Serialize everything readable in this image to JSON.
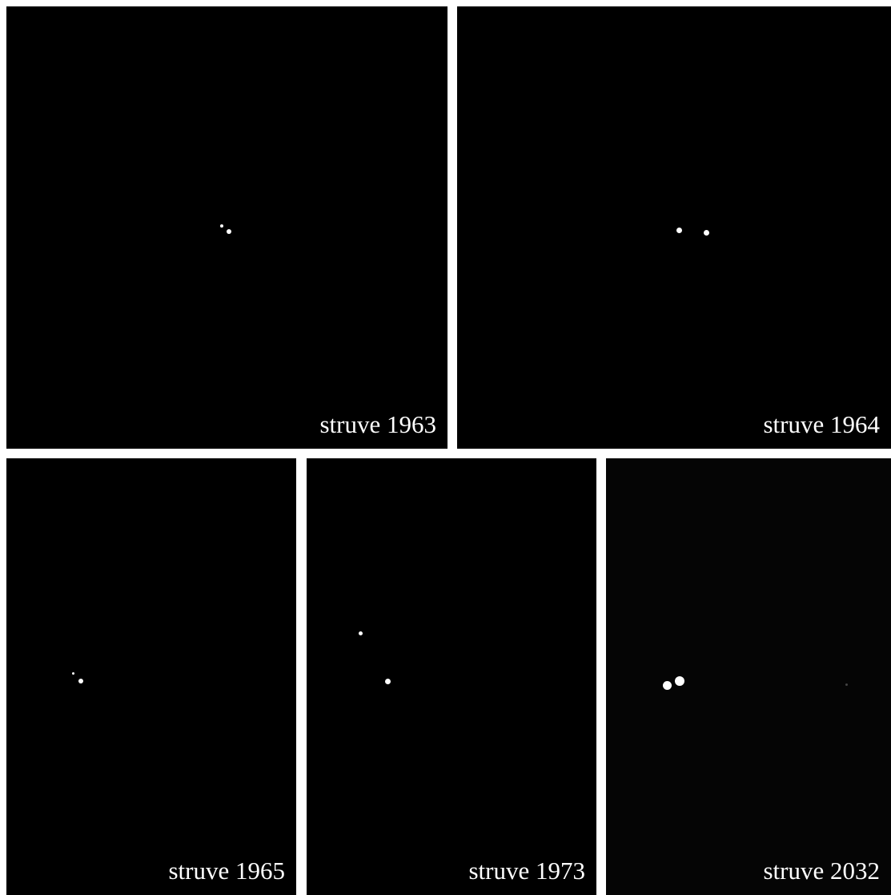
{
  "panels": [
    {
      "label": "struve 1963"
    },
    {
      "label": "struve 1964"
    },
    {
      "label": "struve 1965"
    },
    {
      "label": "struve 1973"
    },
    {
      "label": "struve 2032"
    }
  ]
}
